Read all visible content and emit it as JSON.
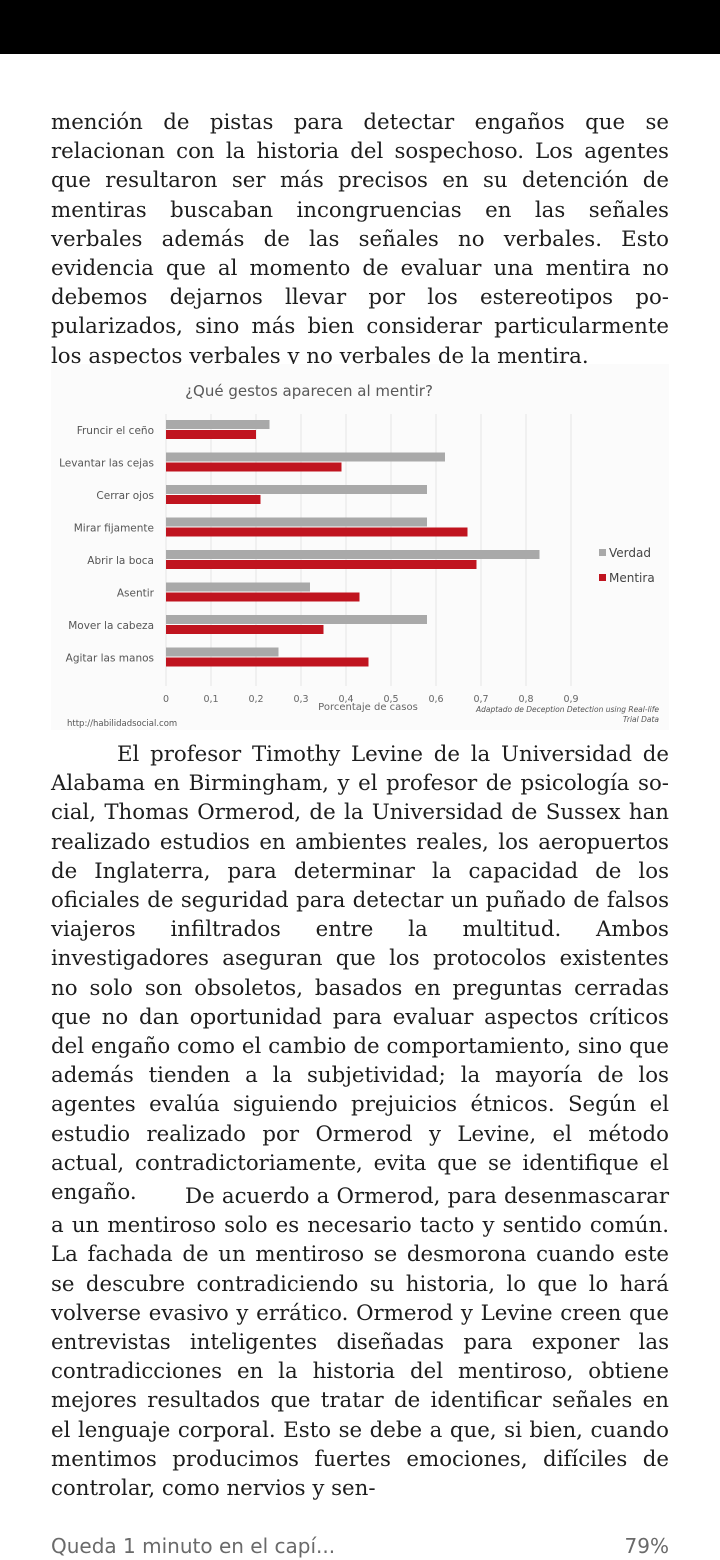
{
  "book": {
    "paragraph_1": "mención de pistas para detectar engaños que se relacionan con la historia del sospechoso. Los agentes que resultaron ser más precisos en su detención de mentiras buscaban in­congruencias en las señales verbales además de las señales no verbales. Esto evidencia que al momento de evaluar una mentira no debemos dejarnos llevar por los estereotipos po­pularizados, sino más bien considerar particularmente los aspectos verbales y no verbales de la mentira.",
    "paragraph_2": "El profesor Timothy Levine de la Universidad de Alabama en Birmingham, y el profesor de psicología so­cial, Thomas Ormerod, de la Universidad de Sussex han realizado estudios en ambientes reales, los aeropuertos de Inglaterra, para determinar la capacidad de los oficiales de seguridad para detectar un puñado de falsos viajeros infil­trados entre la multitud. Ambos investigadores aseguran que los protocolos existentes no solo son obsoletos, basados en preguntas cerradas que no dan oportunidad para eva­luar aspectos críticos del engaño como el cambio de com­portamiento, sino que además tienden a la subjetividad; la mayoría de los agentes evalúa siguiendo prejuicios étnicos. Según el estudio realizado por Ormerod y Levine, el mé­todo actual, contradictoriamente, evita que se identifique el engaño.",
    "paragraph_3": "De acuerdo a Ormerod, para desenmascarar a un mentiroso solo es necesario tacto y sentido común. La fachada de un mentiroso se desmorona cuando este se des­cubre contradiciendo su historia, lo que lo hará volverse evasivo y errático. Ormerod y Levine creen que entrevistas inteligentes diseñadas para exponer las contradicciones en la historia del mentiroso, obtiene mejores resultados que tratar de identificar señales en el lenguaje corporal. Esto se debe a que, si bien, cuando mentimos producimos fuer­tes emociones, difíciles de controlar, como nervios y sen-"
  },
  "footer": {
    "chapter_progress": "Queda 1 minuto en el capí...",
    "book_percent": "79%"
  },
  "colors": {
    "verdad": "#a9a9a9",
    "mentira": "#c0141f"
  },
  "chart_data": {
    "type": "bar",
    "orientation": "horizontal",
    "title": "¿Qué gestos aparecen al mentir?",
    "xlabel": "Porcentaje de casos",
    "ylabel": "",
    "categories": [
      "Fruncir el ceño",
      "Levantar las cejas",
      "Cerrar ojos",
      "Mirar fijamente",
      "Abrir la boca",
      "Asentir",
      "Mover la cabeza",
      "Agitar las manos"
    ],
    "series": [
      {
        "name": "Verdad",
        "values": [
          0.23,
          0.62,
          0.58,
          0.58,
          0.83,
          0.32,
          0.58,
          0.25
        ]
      },
      {
        "name": "Mentira",
        "values": [
          0.2,
          0.39,
          0.21,
          0.67,
          0.69,
          0.43,
          0.35,
          0.45
        ]
      }
    ],
    "xlim": [
      0,
      0.9
    ],
    "xticks": [
      "0",
      "0,1",
      "0,2",
      "0,3",
      "0,4",
      "0,5",
      "0,6",
      "0,7",
      "0,8",
      "0,9"
    ],
    "grid": true,
    "legend": "right",
    "source_left": "http://habilidadsocial.com",
    "source_right_line1": "Adaptado de Deception Detection using Real-life",
    "source_right_line2": "Trial Data"
  }
}
